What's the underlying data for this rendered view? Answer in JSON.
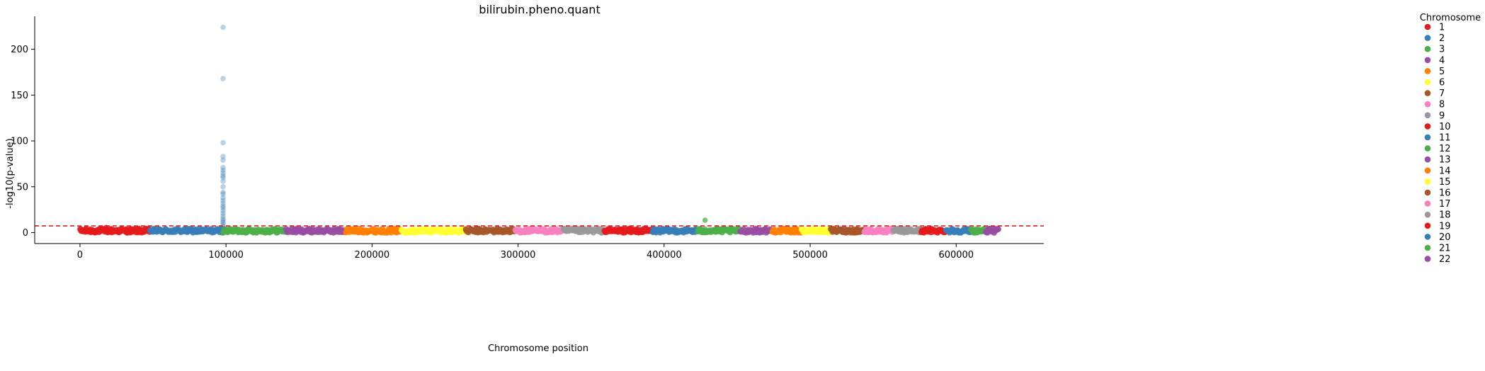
{
  "chart_data": {
    "type": "scatter",
    "title": "bilirubin.pheno.quant",
    "xlabel": "Chromosome position",
    "ylabel": "-log10(p-value)",
    "xlim": [
      -31000,
      660000
    ],
    "ylim": [
      -12,
      236
    ],
    "xticks": [
      0,
      100000,
      200000,
      300000,
      400000,
      500000,
      600000
    ],
    "xtick_labels": [
      "0",
      "100000",
      "200000",
      "300000",
      "400000",
      "500000",
      "600000"
    ],
    "yticks": [
      0,
      50,
      100,
      150,
      200
    ],
    "ytick_labels": [
      "0",
      "50",
      "100",
      "150",
      "200"
    ],
    "grid": false,
    "significance_line": {
      "y": 7.3,
      "style": "dashed",
      "color": "#e41a1c"
    },
    "legend": {
      "title": "Chromosome",
      "placement": "outside-right",
      "entries": [
        "1",
        "2",
        "3",
        "4",
        "5",
        "6",
        "7",
        "8",
        "9",
        "10",
        "11",
        "12",
        "13",
        "14",
        "15",
        "16",
        "17",
        "18",
        "19",
        "20",
        "21",
        "22"
      ]
    },
    "palette": [
      "#e41a1c",
      "#377eb8",
      "#4daf4a",
      "#984ea3",
      "#ff7f00",
      "#ffff33",
      "#a65628",
      "#f781bf",
      "#999999"
    ],
    "chromosome_ranges": [
      {
        "chrom": "1",
        "start": 0,
        "end": 48000
      },
      {
        "chrom": "2",
        "start": 48000,
        "end": 98000
      },
      {
        "chrom": "3",
        "start": 98000,
        "end": 141000
      },
      {
        "chrom": "4",
        "start": 141000,
        "end": 182000
      },
      {
        "chrom": "5",
        "start": 182000,
        "end": 220000
      },
      {
        "chrom": "6",
        "start": 220000,
        "end": 264000
      },
      {
        "chrom": "7",
        "start": 264000,
        "end": 298000
      },
      {
        "chrom": "8",
        "start": 298000,
        "end": 331000
      },
      {
        "chrom": "9",
        "start": 331000,
        "end": 359000
      },
      {
        "chrom": "10",
        "start": 359000,
        "end": 392000
      },
      {
        "chrom": "11",
        "start": 392000,
        "end": 423000
      },
      {
        "chrom": "12",
        "start": 423000,
        "end": 452000
      },
      {
        "chrom": "13",
        "start": 452000,
        "end": 474000
      },
      {
        "chrom": "14",
        "start": 474000,
        "end": 494000
      },
      {
        "chrom": "15",
        "start": 494000,
        "end": 514000
      },
      {
        "chrom": "16",
        "start": 514000,
        "end": 537000
      },
      {
        "chrom": "17",
        "start": 537000,
        "end": 557000
      },
      {
        "chrom": "18",
        "start": 557000,
        "end": 576000
      },
      {
        "chrom": "19",
        "start": 576000,
        "end": 593000
      },
      {
        "chrom": "20",
        "start": 593000,
        "end": 610000
      },
      {
        "chrom": "21",
        "start": 610000,
        "end": 620000
      },
      {
        "chrom": "22",
        "start": 620000,
        "end": 629000
      }
    ],
    "notable_points": [
      {
        "chrom": "1",
        "x": 18000,
        "y": 5.5
      },
      {
        "chrom": "2",
        "x": 98000,
        "y": 224
      },
      {
        "chrom": "2",
        "x": 98000,
        "y": 168
      },
      {
        "chrom": "2",
        "x": 98000,
        "y": 98
      },
      {
        "chrom": "2",
        "x": 98000,
        "y": 83
      },
      {
        "chrom": "2",
        "x": 98000,
        "y": 79
      },
      {
        "chrom": "2",
        "x": 98000,
        "y": 71
      },
      {
        "chrom": "2",
        "x": 98000,
        "y": 68
      },
      {
        "chrom": "2",
        "x": 98000,
        "y": 65
      },
      {
        "chrom": "2",
        "x": 98000,
        "y": 62
      },
      {
        "chrom": "2",
        "x": 98000,
        "y": 60
      },
      {
        "chrom": "2",
        "x": 98000,
        "y": 56
      },
      {
        "chrom": "2",
        "x": 98000,
        "y": 50
      },
      {
        "chrom": "2",
        "x": 98000,
        "y": 44
      },
      {
        "chrom": "2",
        "x": 98000,
        "y": 42
      },
      {
        "chrom": "2",
        "x": 98000,
        "y": 38
      },
      {
        "chrom": "2",
        "x": 98000,
        "y": 35
      },
      {
        "chrom": "2",
        "x": 98000,
        "y": 32
      },
      {
        "chrom": "2",
        "x": 98000,
        "y": 29
      },
      {
        "chrom": "2",
        "x": 98000,
        "y": 27
      },
      {
        "chrom": "2",
        "x": 98000,
        "y": 24
      },
      {
        "chrom": "2",
        "x": 98000,
        "y": 21
      },
      {
        "chrom": "2",
        "x": 98000,
        "y": 18
      },
      {
        "chrom": "2",
        "x": 98000,
        "y": 15
      },
      {
        "chrom": "2",
        "x": 98000,
        "y": 13
      },
      {
        "chrom": "2",
        "x": 98000,
        "y": 11
      },
      {
        "chrom": "2",
        "x": 98000,
        "y": 9
      },
      {
        "chrom": "2",
        "x": 98000,
        "y": 7
      },
      {
        "chrom": "12",
        "x": 428000,
        "y": 13.5
      },
      {
        "chrom": "12",
        "x": 428000,
        "y": 4
      }
    ],
    "baseline_range": [
      0,
      4
    ]
  }
}
